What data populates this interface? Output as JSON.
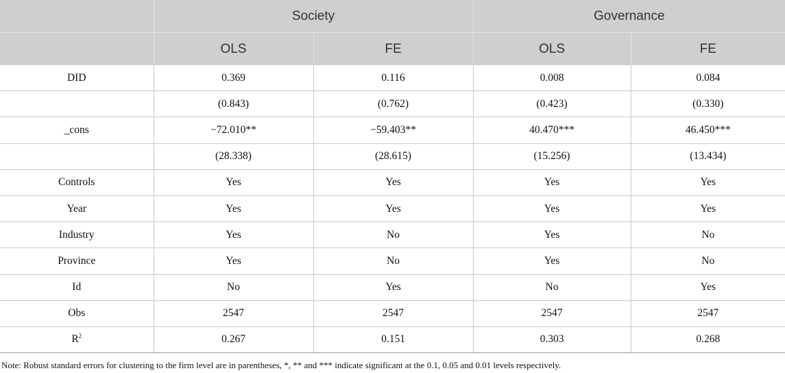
{
  "header": {
    "groups": [
      "Society",
      "Governance"
    ],
    "methods": [
      "OLS",
      "FE",
      "OLS",
      "FE"
    ]
  },
  "rows": [
    {
      "label": "DID",
      "values": [
        "0.369",
        "0.116",
        "0.008",
        "0.084"
      ]
    },
    {
      "label": "",
      "values": [
        "(0.843)",
        "(0.762)",
        "(0.423)",
        "(0.330)"
      ]
    },
    {
      "label": "_cons",
      "values": [
        "−72.010**",
        "−59.403**",
        "40.470***",
        "46.450***"
      ]
    },
    {
      "label": "",
      "values": [
        "(28.338)",
        "(28.615)",
        "(15.256)",
        "(13.434)"
      ]
    },
    {
      "label": "Controls",
      "values": [
        "Yes",
        "Yes",
        "Yes",
        "Yes"
      ]
    },
    {
      "label": "Year",
      "values": [
        "Yes",
        "Yes",
        "Yes",
        "Yes"
      ]
    },
    {
      "label": "Industry",
      "values": [
        "Yes",
        "No",
        "Yes",
        "No"
      ]
    },
    {
      "label": "Province",
      "values": [
        "Yes",
        "No",
        "Yes",
        "No"
      ]
    },
    {
      "label": "Id",
      "values": [
        "No",
        "Yes",
        "No",
        "Yes"
      ]
    },
    {
      "label": "Obs",
      "values": [
        "2547",
        "2547",
        "2547",
        "2547"
      ]
    },
    {
      "label": "R",
      "label_sup": "2",
      "values": [
        "0.267",
        "0.151",
        "0.303",
        "0.268"
      ]
    }
  ],
  "note": "Note: Robust standard errors for clustering to the firm level are in parentheses, *, ** and *** indicate significant at the 0.1, 0.05 and 0.01 levels respectively."
}
